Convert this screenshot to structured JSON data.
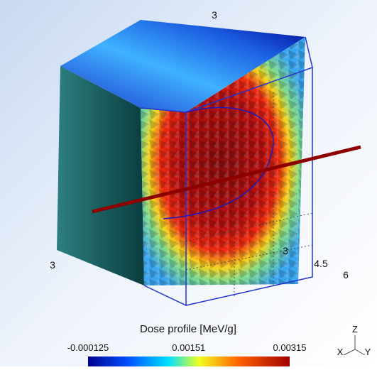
{
  "scene": {
    "axis_labels": {
      "top": "3",
      "left": "3",
      "inner": "3",
      "depth": "4.5",
      "right": "6"
    },
    "colorbar": {
      "title": "Dose profile [MeV/g]",
      "ticks": [
        -0.000125,
        0.00151,
        0.00315
      ]
    },
    "triad": {
      "z": "Z",
      "x": "X",
      "y": "Y"
    }
  }
}
